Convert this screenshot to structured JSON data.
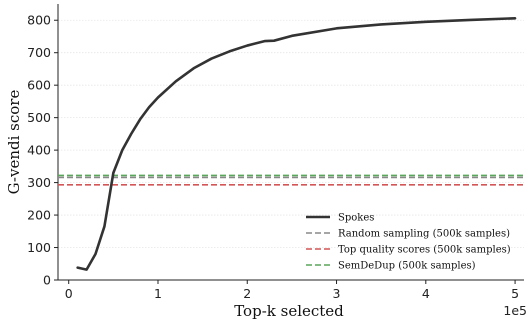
{
  "chart_data": {
    "type": "line",
    "xlabel": "Top-k selected",
    "ylabel": "G-vendi score",
    "x_exponent_label": "1e5",
    "xlim": [
      -0.12,
      5.1
    ],
    "ylim": [
      0,
      850
    ],
    "x_ticks": [
      0,
      1,
      2,
      3,
      4,
      5
    ],
    "x_tick_labels": [
      "0",
      "1",
      "2",
      "3",
      "4",
      "5"
    ],
    "y_ticks": [
      0,
      100,
      200,
      300,
      400,
      500,
      600,
      700,
      800
    ],
    "y_tick_labels": [
      "0",
      "100",
      "200",
      "300",
      "400",
      "500",
      "600",
      "700",
      "800"
    ],
    "grid": "horizontal",
    "legend_position": "lower-right",
    "series": [
      {
        "name": "Spokes",
        "style": "solid",
        "color": "#333333",
        "x": [
          0.1,
          0.2,
          0.3,
          0.4,
          0.5,
          0.6,
          0.7,
          0.8,
          0.9,
          1.0,
          1.2,
          1.4,
          1.6,
          1.8,
          2.0,
          2.2,
          2.3,
          2.5,
          3.0,
          3.5,
          4.0,
          4.5,
          5.0
        ],
        "y": [
          38,
          32,
          80,
          165,
          330,
          400,
          450,
          495,
          532,
          562,
          612,
          652,
          682,
          704,
          722,
          736,
          737,
          752,
          775,
          787,
          795,
          801,
          806
        ]
      },
      {
        "name": "Random sampling (500k samples)",
        "style": "dashed",
        "color": "#888888",
        "y": 316
      },
      {
        "name": "Top quality scores (500k samples)",
        "style": "dashed",
        "color": "#d45555",
        "y": 293
      },
      {
        "name": "SemDeDup (500k samples)",
        "style": "dashed",
        "color": "#5aa65a",
        "y": 322
      }
    ]
  }
}
